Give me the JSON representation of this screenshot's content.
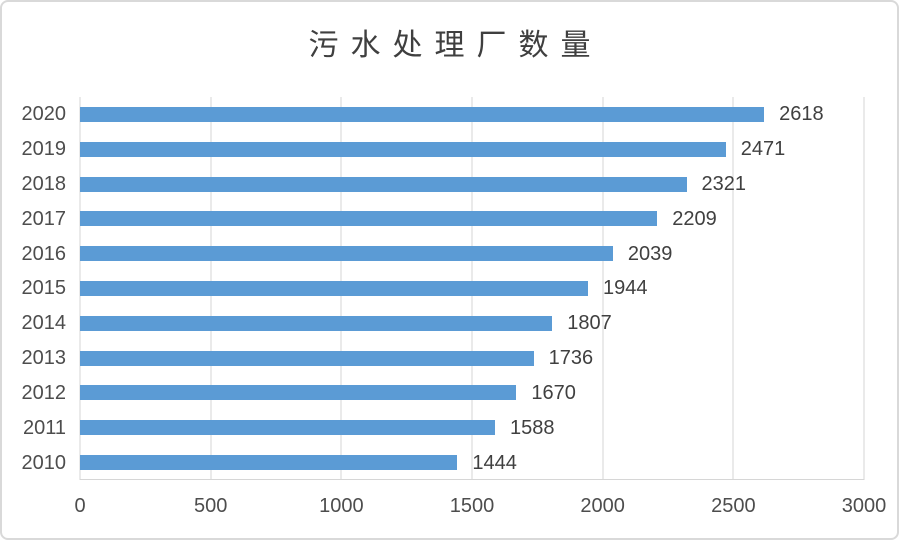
{
  "title": "污水处理厂数量",
  "colors": {
    "bar": "#5b9bd5",
    "grid": "#d6d6d6",
    "axis_text": "#4d4d4d",
    "value_text": "#404040",
    "title_text": "#3f3f3f",
    "border": "#d9d9d9",
    "background": "#ffffff"
  },
  "chart_data": {
    "type": "bar",
    "orientation": "horizontal",
    "title": "污水处理厂数量",
    "categories": [
      "2020",
      "2019",
      "2018",
      "2017",
      "2016",
      "2015",
      "2014",
      "2013",
      "2012",
      "2011",
      "2010"
    ],
    "values": [
      2618,
      2471,
      2321,
      2209,
      2039,
      1944,
      1807,
      1736,
      1670,
      1588,
      1444
    ],
    "xlabel": "",
    "ylabel": "",
    "xlim": [
      0,
      3000
    ],
    "x_ticks": [
      0,
      500,
      1000,
      1500,
      2000,
      2500,
      3000
    ],
    "grid": true,
    "legend": false,
    "data_labels": "outside-end"
  }
}
